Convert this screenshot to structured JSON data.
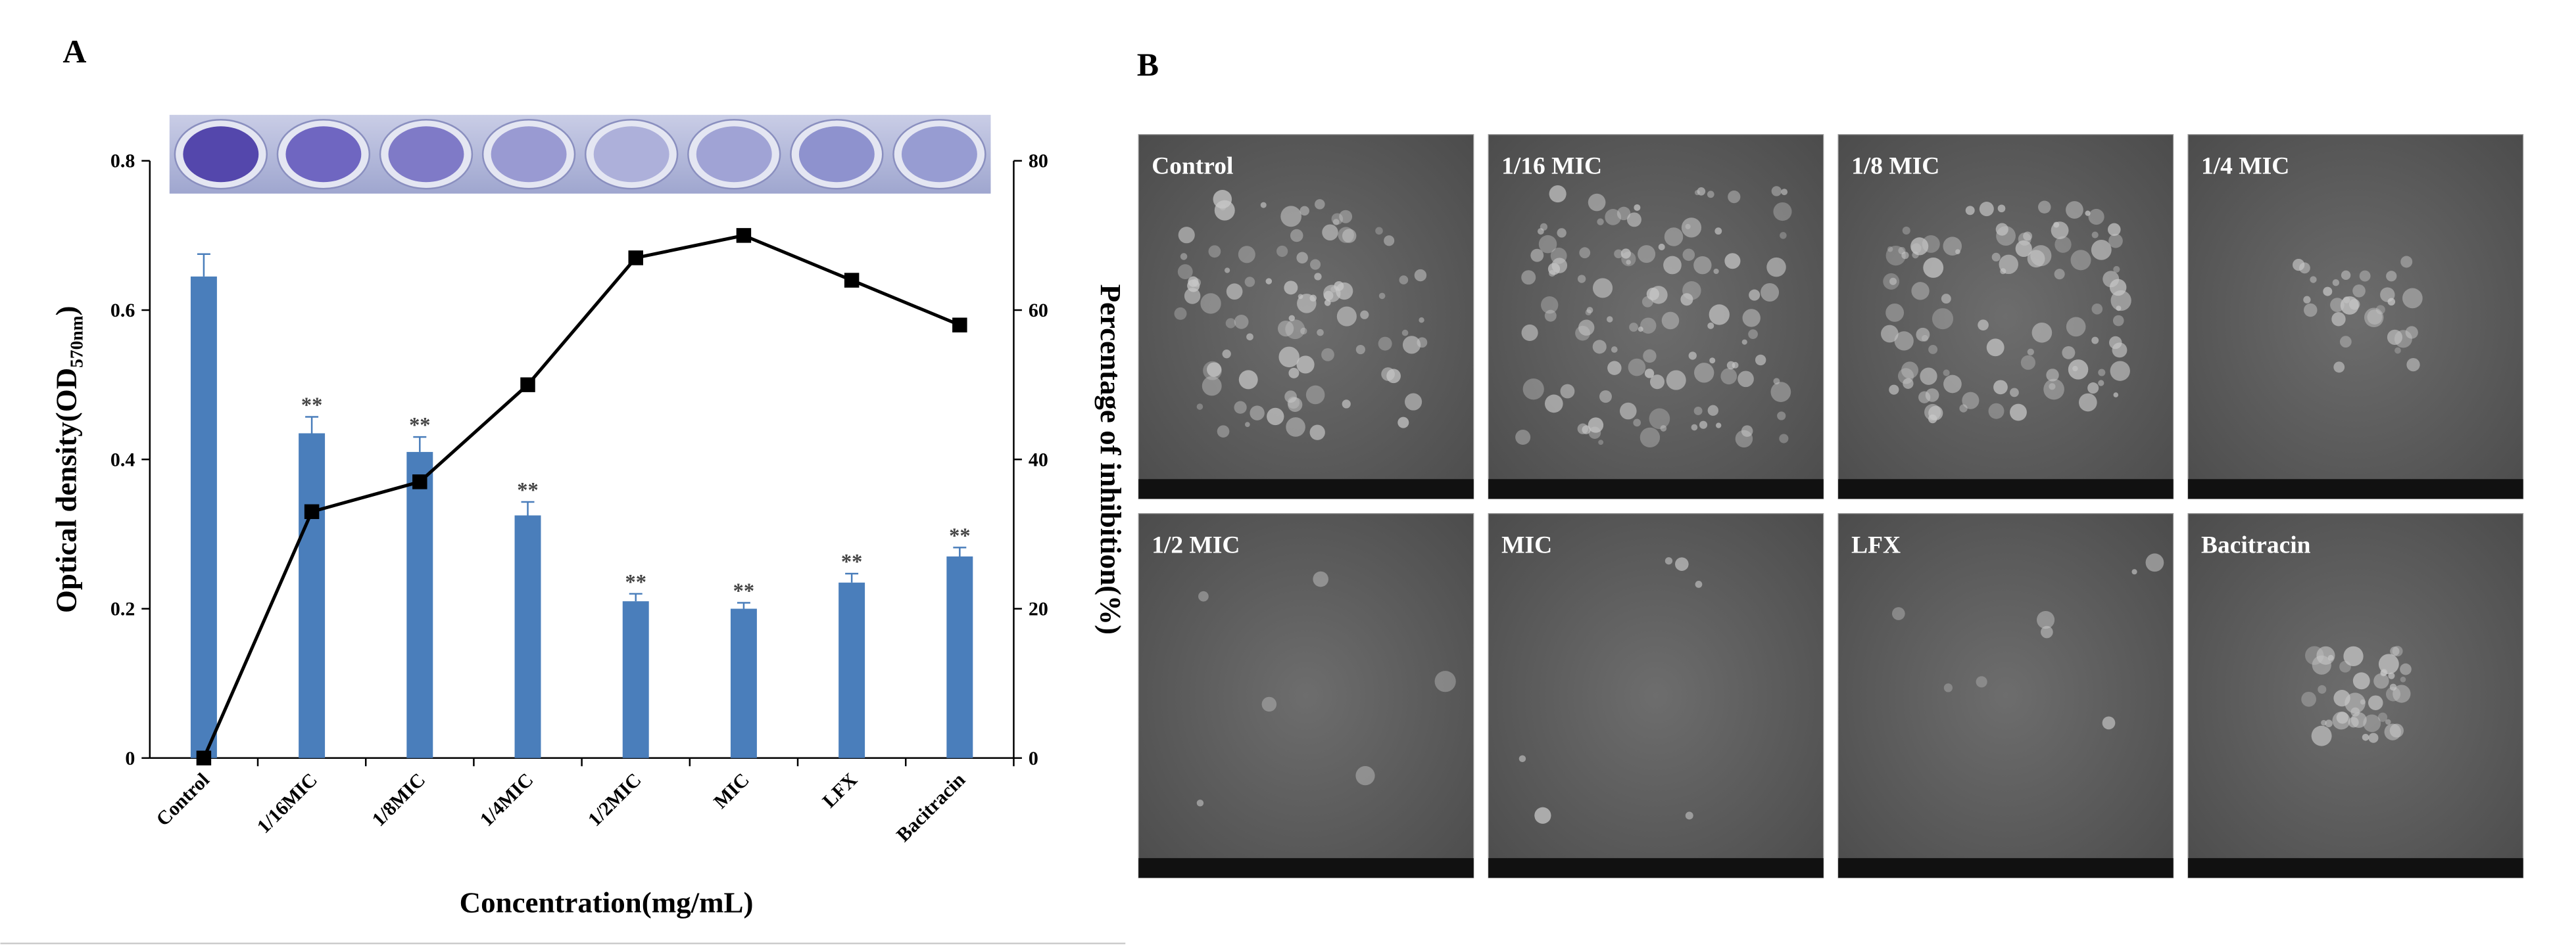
{
  "chart_data": {
    "type": "bar",
    "panel_label": "A",
    "categories": [
      "Control",
      "1/16MIC",
      "1/8MIC",
      "1/4MIC",
      "1/2MIC",
      "MIC",
      "LFX",
      "Bacitracin"
    ],
    "series": [
      {
        "type": "bar",
        "color": "#4a7ebb",
        "values": [
          0.645,
          0.435,
          0.41,
          0.325,
          0.21,
          0.2,
          0.235,
          0.27
        ],
        "errors": [
          0.03,
          0.022,
          0.02,
          0.018,
          0.01,
          0.008,
          0.012,
          0.012
        ],
        "significance": [
          null,
          "**",
          "**",
          "**",
          "**",
          "**",
          "**",
          "**"
        ]
      },
      {
        "type": "line",
        "axis": "y2",
        "color": "#000000",
        "values": [
          0,
          33,
          37,
          50,
          67,
          70,
          64,
          58
        ]
      }
    ],
    "ylim": [
      0,
      0.8
    ],
    "yticks": [
      0,
      0.2,
      0.4,
      0.6,
      0.8
    ],
    "y2lim": [
      0,
      80
    ],
    "y2ticks": [
      0,
      20,
      40,
      60,
      80
    ],
    "y_label": "Optical density(OD",
    "y_label_sub": "570nm",
    "y_label_end": ")",
    "y2_label": "Percentage of inhibition(%)",
    "x_label": "Concentration(mg/mL)"
  },
  "panel_b": {
    "label": "B",
    "images": [
      "Control",
      "1/16 MIC",
      "1/8 MIC",
      "1/4 MIC",
      "1/2 MIC",
      "MIC",
      "LFX",
      "Bacitracin"
    ]
  }
}
